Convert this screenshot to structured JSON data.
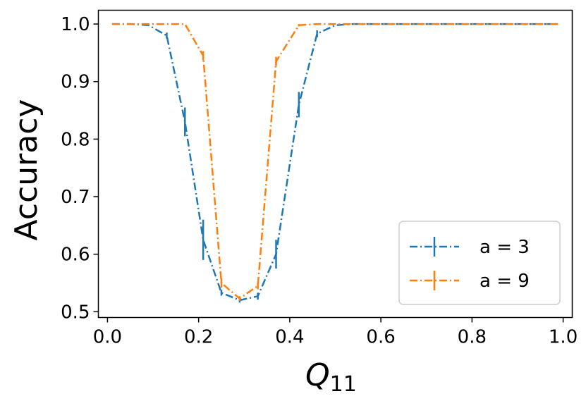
{
  "chart_data": {
    "type": "line",
    "title": "",
    "xlabel_main": "Q",
    "xlabel_sub": "11",
    "ylabel": "Accuracy",
    "xlim": [
      -0.02,
      1.02
    ],
    "ylim": [
      0.49,
      1.024
    ],
    "xticks": [
      0.0,
      0.2,
      0.4,
      0.6,
      0.8,
      1.0
    ],
    "xtick_labels": [
      "0.0",
      "0.2",
      "0.4",
      "0.6",
      "0.8",
      "1.0"
    ],
    "yticks": [
      0.5,
      0.6,
      0.7,
      0.8,
      0.9,
      1.0
    ],
    "ytick_labels": [
      "0.5",
      "0.6",
      "0.7",
      "0.8",
      "0.9",
      "1.0"
    ],
    "grid": false,
    "legend_position": "lower-right",
    "x": [
      0.01,
      0.05,
      0.09,
      0.13,
      0.17,
      0.21,
      0.25,
      0.29,
      0.33,
      0.37,
      0.42,
      0.46,
      0.5,
      0.54,
      0.58,
      0.62,
      0.66,
      0.7,
      0.74,
      0.78,
      0.82,
      0.86,
      0.9,
      0.95,
      0.99
    ],
    "series": [
      {
        "name": "a = 3",
        "color": "#1f77b4",
        "values": [
          1.0,
          1.0,
          0.998,
          0.98,
          0.83,
          0.625,
          0.533,
          0.52,
          0.527,
          0.6,
          0.86,
          0.983,
          0.998,
          1.0,
          1.0,
          1.0,
          1.0,
          1.0,
          1.0,
          1.0,
          1.0,
          1.0,
          1.0,
          1.0,
          1.0
        ],
        "errors": [
          0.0,
          0.0,
          0.001,
          0.005,
          0.025,
          0.035,
          0.005,
          0.004,
          0.006,
          0.025,
          0.022,
          0.006,
          0.0,
          0.0,
          0.0,
          0.0,
          0.0,
          0.0,
          0.0,
          0.0,
          0.0,
          0.0,
          0.0,
          0.0,
          0.0
        ]
      },
      {
        "name": "a = 9",
        "color": "#ff7f0e",
        "values": [
          1.0,
          1.0,
          1.0,
          1.0,
          1.0,
          0.945,
          0.55,
          0.523,
          0.545,
          0.935,
          0.998,
          1.0,
          1.0,
          1.0,
          1.0,
          1.0,
          1.0,
          1.0,
          1.0,
          1.0,
          1.0,
          1.0,
          1.0,
          1.0,
          1.0
        ],
        "errors": [
          0.0,
          0.0,
          0.0,
          0.0,
          0.0,
          0.008,
          0.008,
          0.004,
          0.006,
          0.008,
          0.002,
          0.0,
          0.0,
          0.0,
          0.0,
          0.0,
          0.0,
          0.0,
          0.0,
          0.0,
          0.0,
          0.0,
          0.0,
          0.0,
          0.0
        ]
      }
    ]
  }
}
